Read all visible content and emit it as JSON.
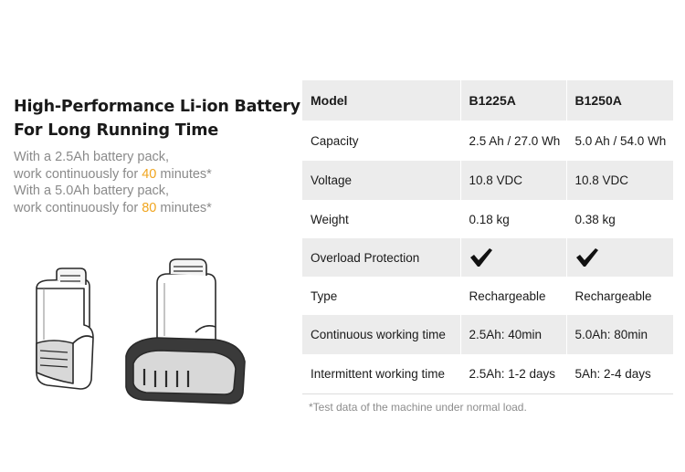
{
  "headline": {
    "line1": "High-Performance Li-ion Battery",
    "line2": "For Long Running Time"
  },
  "description": [
    {
      "pre": "With a 2.5Ah battery pack,",
      "mid": "",
      "post": ""
    },
    {
      "pre": "work continuously for ",
      "mid": "40",
      "post": " minutes*"
    },
    {
      "pre": "With a 5.0Ah battery pack,",
      "mid": "",
      "post": ""
    },
    {
      "pre": "work continuously for ",
      "mid": "80",
      "post": " minutes*"
    }
  ],
  "highlight_color": "#f0a51e",
  "spec_table": {
    "header": {
      "label": "Model",
      "col1": "B1225A",
      "col2": "B1250A"
    },
    "rows": [
      {
        "label": "Capacity",
        "col1": "2.5 Ah / 27.0 Wh",
        "col2": "5.0 Ah / 54.0 Wh"
      },
      {
        "label": "Voltage",
        "col1": "10.8 VDC",
        "col2": "10.8 VDC"
      },
      {
        "label": "Weight",
        "col1": "0.18 kg",
        "col2": "0.38 kg"
      },
      {
        "label": "Overload Protection",
        "col1": "check-icon",
        "col2": "check-icon"
      },
      {
        "label": "Type",
        "col1": "Rechargeable",
        "col2": "Rechargeable"
      },
      {
        "label": "Continuous working time",
        "col1": "2.5Ah: 40min",
        "col2": "5.0Ah: 80min"
      },
      {
        "label": "Intermittent working time",
        "col1": "2.5Ah: 1-2 days",
        "col2": "5Ah: 2-4 days"
      }
    ]
  },
  "footnote": "*Test data of the machine under normal load.",
  "images": [
    "battery-2.5ah-icon",
    "battery-5.0ah-icon"
  ]
}
